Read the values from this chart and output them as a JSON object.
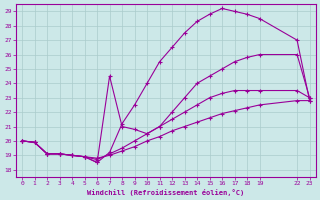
{
  "xlabel": "Windchill (Refroidissement éolien,°C)",
  "bg_color": "#cce8e8",
  "line_color": "#990099",
  "grid_color": "#aacccc",
  "xlim": [
    -0.5,
    23.5
  ],
  "ylim": [
    17.5,
    29.5
  ],
  "xticks": [
    0,
    1,
    2,
    3,
    4,
    5,
    6,
    7,
    8,
    9,
    10,
    11,
    12,
    13,
    14,
    15,
    16,
    17,
    18,
    19,
    22,
    23
  ],
  "yticks": [
    18,
    19,
    20,
    21,
    22,
    23,
    24,
    25,
    26,
    27,
    28,
    29
  ],
  "lines": [
    {
      "x": [
        0,
        1,
        2,
        3,
        4,
        5,
        6,
        7,
        8,
        9,
        10,
        11,
        12,
        13,
        14,
        15,
        16,
        17,
        18,
        19,
        22,
        23
      ],
      "y": [
        20.0,
        19.9,
        19.1,
        19.1,
        19.0,
        18.9,
        18.8,
        19.0,
        19.3,
        19.6,
        20.0,
        20.3,
        20.7,
        21.0,
        21.3,
        21.6,
        21.9,
        22.1,
        22.3,
        22.5,
        22.8,
        22.8
      ]
    },
    {
      "x": [
        0,
        1,
        2,
        3,
        4,
        5,
        6,
        7,
        8,
        9,
        10,
        11,
        12,
        13,
        14,
        15,
        16,
        17,
        18,
        19,
        22,
        23
      ],
      "y": [
        20.0,
        19.9,
        19.1,
        19.1,
        19.0,
        18.9,
        18.7,
        19.1,
        19.5,
        20.0,
        20.5,
        21.0,
        21.5,
        22.0,
        22.5,
        23.0,
        23.3,
        23.5,
        23.5,
        23.5,
        23.5,
        23.0
      ]
    },
    {
      "x": [
        0,
        1,
        2,
        3,
        4,
        5,
        6,
        7,
        8,
        9,
        10,
        11,
        12,
        13,
        14,
        15,
        16,
        17,
        18,
        19,
        22,
        23
      ],
      "y": [
        20.0,
        19.9,
        19.1,
        19.1,
        19.0,
        18.9,
        18.5,
        19.2,
        21.2,
        22.5,
        24.0,
        25.5,
        26.5,
        27.5,
        28.3,
        28.8,
        29.2,
        29.0,
        28.8,
        28.5,
        27.0,
        22.8
      ]
    },
    {
      "x": [
        0,
        1,
        2,
        3,
        4,
        5,
        6,
        7,
        8,
        9,
        10,
        11,
        12,
        13,
        14,
        15,
        16,
        17,
        18,
        19,
        22,
        23
      ],
      "y": [
        20.0,
        19.9,
        19.1,
        19.1,
        19.0,
        18.9,
        18.5,
        24.5,
        21.0,
        20.8,
        20.5,
        21.0,
        22.0,
        23.0,
        24.0,
        24.5,
        25.0,
        25.5,
        25.8,
        26.0,
        26.0,
        23.0
      ]
    }
  ]
}
